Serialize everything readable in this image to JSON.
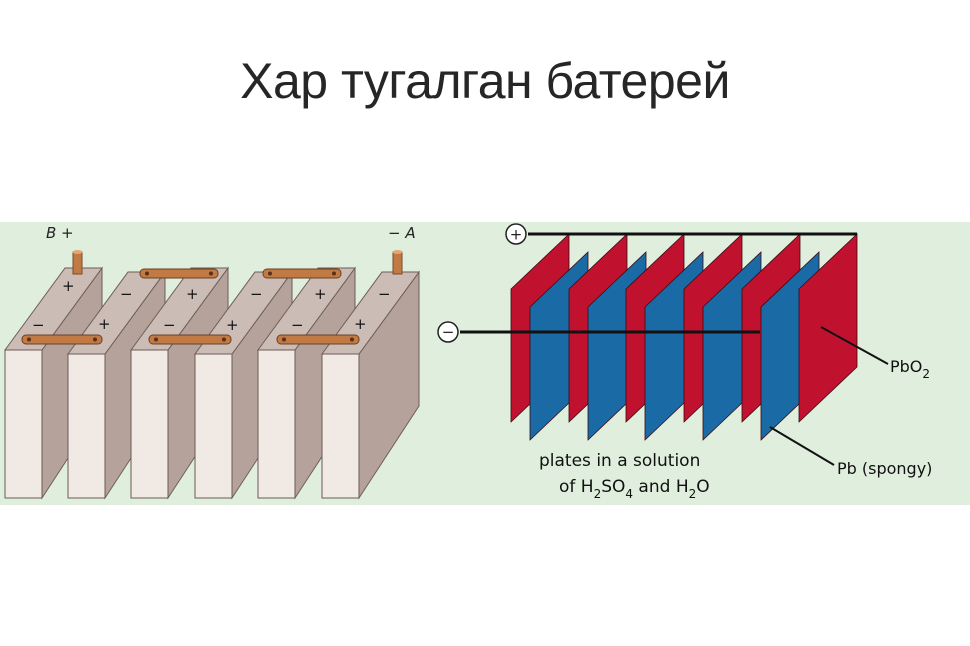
{
  "slide": {
    "title": "Хар тугалган батерей"
  },
  "battery_diagram": {
    "terminal_b_label": "B +",
    "terminal_a_label": "− A",
    "plus": "+",
    "minus": "−"
  },
  "cell_diagram": {
    "positive_symbol": "+",
    "negative_symbol": "−",
    "pbo2_label": "PbO",
    "pbo2_subscript": "2",
    "pb_label": "Pb (spongy)",
    "caption_line1": "plates in a solution",
    "caption_of": "of H",
    "caption_h2so4_sub1": "2",
    "caption_so": "SO",
    "caption_h2so4_sub2": "4",
    "caption_and": " and H",
    "caption_h2o_sub": "2",
    "caption_o": "O"
  },
  "colors": {
    "cell_front": "#f1e9e4",
    "cell_side": "#b4a29b",
    "cell_top": "#ccbcb6",
    "copper": "#c27a45",
    "red_plate": "#c0122e",
    "blue_plate": "#1a6aa6",
    "panel_bg": "#dfeedd"
  }
}
